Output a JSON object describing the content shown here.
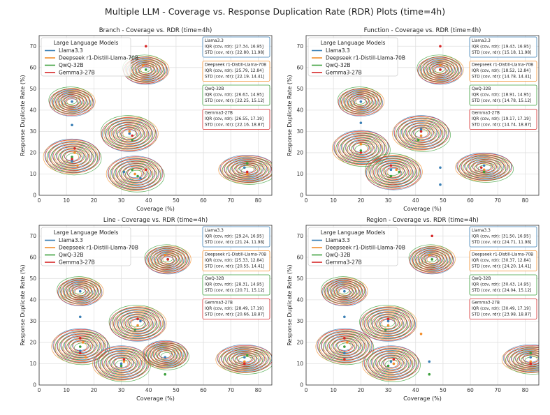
{
  "suptitle": "Multiple LLM - Coverage vs. Response Duplication Rate (RDR) Plots (time=4h)",
  "legend": {
    "title": "Large Language Models",
    "models": [
      "Llama3.3",
      "Deepseek r1-Distill-Llama-70B",
      "QwQ-32B",
      "Gemma3-27B"
    ]
  },
  "colors": {
    "Llama3.3": "#3a7fb5",
    "Deepseek r1-Distill-Llama-70B": "#f28e2b",
    "QwQ-32B": "#3ca03c",
    "Gemma3-27B": "#d62728",
    "grid": "#e0e0e0"
  },
  "chart_data": [
    {
      "type": "scatter",
      "title": "Branch - Coverage vs. RDR (time=4h)",
      "xlabel": "Coverage (%)",
      "ylabel": "Response Duplicate Rate (%)",
      "xlim": [
        0,
        85
      ],
      "ylim": [
        0,
        75
      ],
      "xticks": [
        0,
        10,
        20,
        30,
        40,
        50,
        60,
        70,
        80
      ],
      "yticks": [
        0,
        10,
        20,
        30,
        40,
        50,
        60,
        70
      ],
      "stats": [
        {
          "model": "Llama3.3",
          "title": "Llama3.3",
          "iqr": "IQR (cov, rdr): [27.34, 16.95]",
          "std": "STD (cov, rdr): [22.80, 11.98]"
        },
        {
          "model": "Deepseek r1-Distill-Llama-70B",
          "title": "Deepseek r1-Distill-Llama-70B",
          "iqr": "IQR (cov, rdr): [25.79, 12.84]",
          "std": "STD (cov, rdr): [22.19, 14.41]"
        },
        {
          "model": "QwQ-32B",
          "title": "QwQ-32B",
          "iqr": "IQR (cov, rdr): [26.63, 14.95]",
          "std": "STD (cov, rdr): [22.25, 15.12]"
        },
        {
          "model": "Gemma3-27B",
          "title": "Gemma3-27B",
          "iqr": "IQR (cov, rdr): [26.55, 17.19]",
          "std": "STD (cov, rdr): [22.16, 18.87]"
        }
      ],
      "clusters": [
        [
          12,
          18
        ],
        [
          33,
          29
        ],
        [
          35,
          10
        ],
        [
          39,
          59
        ],
        [
          76,
          12
        ],
        [
          12,
          44
        ]
      ],
      "series": [
        {
          "name": "Llama3.3",
          "points": [
            [
              12,
              44
            ],
            [
              12,
              33
            ],
            [
              12,
              16
            ],
            [
              33,
              29
            ],
            [
              31,
              11
            ],
            [
              75,
              13
            ],
            [
              37,
              8
            ]
          ]
        },
        {
          "name": "Deepseek r1-Distill-Llama-70B",
          "points": [
            [
              13,
              20
            ],
            [
              33,
              30
            ],
            [
              35,
              10
            ],
            [
              38,
              61
            ],
            [
              76,
              10
            ],
            [
              14,
              14
            ]
          ]
        },
        {
          "name": "QwQ-32B",
          "points": [
            [
              12,
              18
            ],
            [
              34,
              26
            ],
            [
              34,
              12
            ],
            [
              39,
              59
            ],
            [
              76,
              15
            ],
            [
              36,
              9
            ]
          ]
        },
        {
          "name": "Gemma3-27B",
          "points": [
            [
              13,
              22
            ],
            [
              34,
              28
            ],
            [
              39,
              12
            ],
            [
              39,
              70
            ],
            [
              76,
              11
            ],
            [
              12,
              17
            ]
          ]
        }
      ]
    },
    {
      "type": "scatter",
      "title": "Function - Coverage vs. RDR (time=4h)",
      "xlabel": "Coverage (%)",
      "ylabel": "Response Duplicate Rate (%)",
      "xlim": [
        0,
        85
      ],
      "ylim": [
        0,
        75
      ],
      "xticks": [
        0,
        10,
        20,
        30,
        40,
        50,
        60,
        70,
        80
      ],
      "yticks": [
        0,
        10,
        20,
        30,
        40,
        50,
        60,
        70
      ],
      "stats": [
        {
          "model": "Llama3.3",
          "title": "Llama3.3",
          "iqr": "IQR (cov, rdr): [19.43, 16.95]",
          "std": "STD (cov, rdr): [15.18, 11.98]"
        },
        {
          "model": "Deepseek r1-Distill-Llama-70B",
          "title": "Deepseek r1-Distill-Llama-70B",
          "iqr": "IQR (cov, rdr): [18.52, 12.84]",
          "std": "STD (cov, rdr): [14.78, 14.41]"
        },
        {
          "model": "QwQ-32B",
          "title": "QwQ-32B",
          "iqr": "IQR (cov, rdr): [18.91, 14.95]",
          "std": "STD (cov, rdr): [14.78, 15.12]"
        },
        {
          "model": "Gemma3-27B",
          "title": "Gemma3-27B",
          "iqr": "IQR (cov, rdr): [19.17, 17.19]",
          "std": "STD (cov, rdr): [14.74, 18.87]"
        }
      ],
      "clusters": [
        [
          20,
          22
        ],
        [
          32,
          11
        ],
        [
          42,
          29
        ],
        [
          49,
          59
        ],
        [
          65,
          13
        ],
        [
          20,
          44
        ]
      ],
      "series": [
        {
          "name": "Llama3.3",
          "points": [
            [
              20,
              44
            ],
            [
              20,
              34
            ],
            [
              31,
              12
            ],
            [
              42,
              31
            ],
            [
              49,
              13
            ],
            [
              65,
              14
            ],
            [
              49,
              5
            ]
          ]
        },
        {
          "name": "Deepseek r1-Distill-Llama-70B",
          "points": [
            [
              20,
              24
            ],
            [
              33,
              12
            ],
            [
              42,
              28
            ],
            [
              49,
              61
            ],
            [
              65,
              12
            ]
          ]
        },
        {
          "name": "QwQ-32B",
          "points": [
            [
              20,
              21
            ],
            [
              34,
              11
            ],
            [
              41,
              26
            ],
            [
              49,
              59
            ],
            [
              65,
              11
            ],
            [
              31,
              9
            ]
          ]
        },
        {
          "name": "Gemma3-27B",
          "points": [
            [
              20,
              20
            ],
            [
              31,
              14
            ],
            [
              42,
              30
            ],
            [
              49,
              70
            ],
            [
              64,
              13
            ],
            [
              49,
              59
            ]
          ]
        }
      ]
    },
    {
      "type": "scatter",
      "title": "Line - Coverage vs. RDR (time=4h)",
      "xlabel": "Coverage (%)",
      "ylabel": "Response Duplicate Rate (%)",
      "xlim": [
        0,
        85
      ],
      "ylim": [
        0,
        75
      ],
      "xticks": [
        0,
        10,
        20,
        30,
        40,
        50,
        60,
        70,
        80
      ],
      "yticks": [
        0,
        10,
        20,
        30,
        40,
        50,
        60,
        70
      ],
      "stats": [
        {
          "model": "Llama3.3",
          "title": "Llama3.3",
          "iqr": "IQR (cov, rdr): [29.24, 16.95]",
          "std": "STD (cov, rdr): [21.24, 11.98]"
        },
        {
          "model": "Deepseek r1-Distill-Llama-70B",
          "title": "Deepseek r1-Distill-Llama-70B",
          "iqr": "IQR (cov, rdr): [25.33, 12.84]",
          "std": "STD (cov, rdr): [20.55, 14.41]"
        },
        {
          "model": "QwQ-32B",
          "title": "QwQ-32B",
          "iqr": "IQR (cov, rdr): [28.31, 14.95]",
          "std": "STD (cov, rdr): [20.71, 15.12]"
        },
        {
          "model": "Gemma3-27B",
          "title": "Gemma3-27B",
          "iqr": "IQR (cov, rdr): [28.49, 17.19]",
          "std": "STD (cov, rdr): [20.66, 18.87]"
        }
      ],
      "clusters": [
        [
          15,
          18
        ],
        [
          36,
          29
        ],
        [
          30,
          10
        ],
        [
          47,
          59
        ],
        [
          75,
          12
        ],
        [
          15,
          44
        ],
        [
          46,
          14
        ]
      ],
      "series": [
        {
          "name": "Llama3.3",
          "points": [
            [
              15,
              44
            ],
            [
              15,
              32
            ],
            [
              15,
              16
            ],
            [
              37,
              30
            ],
            [
              30,
              10
            ],
            [
              75,
              13
            ],
            [
              46,
              13
            ]
          ]
        },
        {
          "name": "Deepseek r1-Distill-Llama-70B",
          "points": [
            [
              16,
              20
            ],
            [
              36,
              28
            ],
            [
              31,
              11
            ],
            [
              46,
              61
            ],
            [
              75,
              11
            ],
            [
              17,
              13
            ]
          ]
        },
        {
          "name": "QwQ-32B",
          "points": [
            [
              15,
              18
            ],
            [
              35,
              26
            ],
            [
              30,
              9
            ],
            [
              47,
              59
            ],
            [
              76,
              14
            ],
            [
              46,
              5
            ]
          ]
        },
        {
          "name": "Gemma3-27B",
          "points": [
            [
              15,
              22
            ],
            [
              36,
              31
            ],
            [
              31,
              12
            ],
            [
              47,
              59
            ],
            [
              75,
              10
            ],
            [
              15,
              15
            ]
          ]
        }
      ]
    },
    {
      "type": "scatter",
      "title": "Region - Coverage vs. RDR (time=4h)",
      "xlabel": "Coverage (%)",
      "ylabel": "Response Duplicate Rate (%)",
      "xlim": [
        0,
        85
      ],
      "ylim": [
        0,
        75
      ],
      "xticks": [
        0,
        10,
        20,
        30,
        40,
        50,
        60,
        70,
        80
      ],
      "yticks": [
        0,
        10,
        20,
        30,
        40,
        50,
        60,
        70
      ],
      "stats": [
        {
          "model": "Llama3.3",
          "title": "Llama3.3",
          "iqr": "IQR (cov, rdr): [31.50, 16.95]",
          "std": "STD (cov, rdr): [24.71, 11.98]"
        },
        {
          "model": "Deepseek r1-Distill-Llama-70B",
          "title": "Deepseek r1-Distill-Llama-70B",
          "iqr": "IQR (cov, rdr): [30.37, 12.84]",
          "std": "STD (cov, rdr): [24.20, 14.41]"
        },
        {
          "model": "QwQ-32B",
          "title": "QwQ-32B",
          "iqr": "IQR (cov, rdr): [30.43, 14.95]",
          "std": "STD (cov, rdr): [24.04, 15.12]"
        },
        {
          "model": "Gemma3-27B",
          "title": "Gemma3-27B",
          "iqr": "IQR (cov, rdr): [30.49, 17.19]",
          "std": "STD (cov, rdr): [23.98, 18.87]"
        }
      ],
      "clusters": [
        [
          14,
          18
        ],
        [
          30,
          29
        ],
        [
          31,
          10
        ],
        [
          46,
          59
        ],
        [
          82,
          12
        ],
        [
          14,
          44
        ]
      ],
      "series": [
        {
          "name": "Llama3.3",
          "points": [
            [
              14,
              44
            ],
            [
              14,
              32
            ],
            [
              14,
              15
            ],
            [
              30,
              30
            ],
            [
              31,
              11
            ],
            [
              82,
              13
            ],
            [
              45,
              11
            ]
          ]
        },
        {
          "name": "Deepseek r1-Distill-Llama-70B",
          "points": [
            [
              15,
              20
            ],
            [
              30,
              28
            ],
            [
              32,
              10
            ],
            [
              45,
              61
            ],
            [
              82,
              11
            ],
            [
              42,
              24
            ]
          ]
        },
        {
          "name": "QwQ-32B",
          "points": [
            [
              14,
              18
            ],
            [
              29,
              26
            ],
            [
              30,
              9
            ],
            [
              46,
              59
            ],
            [
              82,
              15
            ],
            [
              45,
              5
            ]
          ]
        },
        {
          "name": "Gemma3-27B",
          "points": [
            [
              14,
              22
            ],
            [
              30,
              31
            ],
            [
              32,
              12
            ],
            [
              46,
              70
            ],
            [
              82,
              10
            ],
            [
              14,
              12
            ]
          ]
        }
      ]
    }
  ]
}
